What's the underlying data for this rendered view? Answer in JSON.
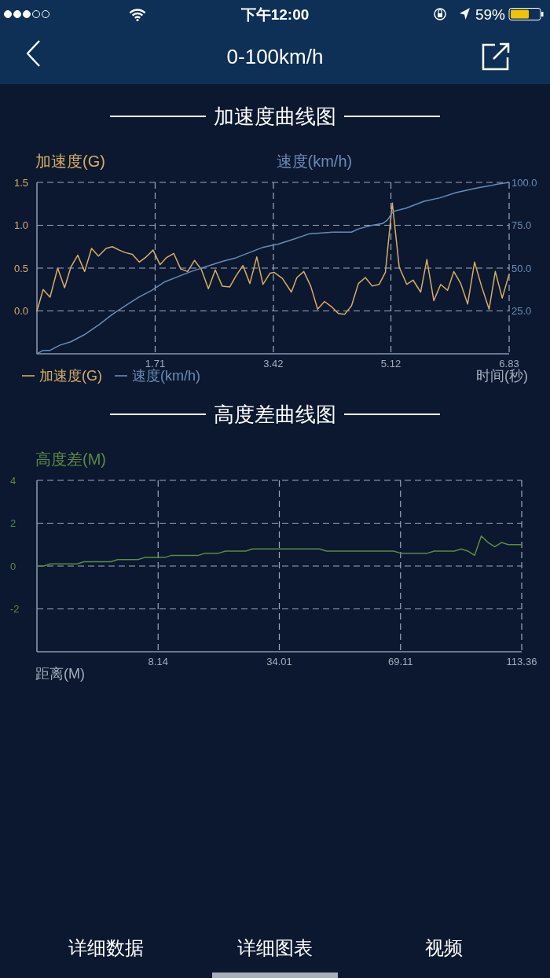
{
  "chart_data": [
    {
      "type": "other",
      "title": "0-100km/h",
      "annotations": [
        "下午12:00",
        "59%"
      ]
    },
    {
      "type": "line",
      "title": "加速度曲线图",
      "ylabel": "加速度(G)",
      "y2label": "速度(km/h)",
      "xlabel": "时间(秒)",
      "xlim": [
        0,
        6.83
      ],
      "xticks": [
        1.71,
        3.42,
        5.12,
        6.83
      ],
      "ylim": [
        -0.5,
        1.5
      ],
      "yticks": [
        {
          "value": 0,
          "label": "0.0"
        },
        0.5,
        {
          "value": 1,
          "label": "1.0"
        },
        1.5
      ],
      "y2lim": [
        0,
        100
      ],
      "y2ticks": [
        {
          "value": 25,
          "label": "25.0"
        },
        {
          "value": 50,
          "label": "50.0"
        },
        {
          "value": 75,
          "label": "75.0"
        },
        {
          "value": 100,
          "label": "100.0"
        }
      ],
      "grid": true,
      "legend": "bottom left",
      "series": [
        {
          "name": "加速度(G)",
          "color": "#d9ad62",
          "x": [
            0,
            0.09,
            0.19,
            0.3,
            0.4,
            0.49,
            0.59,
            0.69,
            0.79,
            0.89,
            1.0,
            1.09,
            1.19,
            1.28,
            1.38,
            1.48,
            1.58,
            1.68,
            1.78,
            1.87,
            1.98,
            2.08,
            2.18,
            2.28,
            2.38,
            2.48,
            2.58,
            2.68,
            2.79,
            2.88,
            2.98,
            3.08,
            3.18,
            3.27,
            3.37,
            3.43,
            3.55,
            3.68,
            3.76,
            3.86,
            3.96,
            4.06,
            4.16,
            4.26,
            4.36,
            4.45,
            4.55,
            4.65,
            4.75,
            4.85,
            4.95,
            5.04,
            5.14,
            5.24,
            5.35,
            5.44,
            5.55,
            5.64,
            5.74,
            5.84,
            5.94,
            6.03,
            6.13,
            6.23,
            6.33,
            6.43,
            6.54,
            6.63,
            6.73,
            6.83
          ],
          "values": [
            0,
            0.25,
            0.16,
            0.5,
            0.27,
            0.51,
            0.65,
            0.46,
            0.73,
            0.64,
            0.73,
            0.75,
            0.71,
            0.68,
            0.66,
            0.57,
            0.63,
            0.71,
            0.54,
            0.62,
            0.67,
            0.49,
            0.46,
            0.59,
            0.48,
            0.26,
            0.48,
            0.29,
            0.28,
            0.41,
            0.53,
            0.32,
            0.63,
            0.31,
            0.44,
            0.45,
            0.38,
            0.22,
            0.39,
            0.46,
            0.29,
            0.02,
            0.11,
            0.05,
            -0.03,
            -0.04,
            0.06,
            0.32,
            0.39,
            0.29,
            0.31,
            0.45,
            1.26,
            0.51,
            0.31,
            0.36,
            0.22,
            0.6,
            0.12,
            0.31,
            0.24,
            0.46,
            0.32,
            0.08,
            0.57,
            0.29,
            0.02,
            0.46,
            0.15,
            0.43
          ]
        },
        {
          "name": "速度(km/h)",
          "color": "#6a8cb6",
          "axis": "y2",
          "x": [
            0,
            0.09,
            0.19,
            0.33,
            0.49,
            0.68,
            0.9,
            1.09,
            1.28,
            1.47,
            1.66,
            1.85,
            2.04,
            2.23,
            2.46,
            2.69,
            2.88,
            3.07,
            3.26,
            3.49,
            3.72,
            3.94,
            4.28,
            4.55,
            4.66,
            4.85,
            5.0,
            5.07,
            5.15,
            5.34,
            5.6,
            5.83,
            6.06,
            6.28,
            6.4,
            6.55,
            6.66,
            6.83
          ],
          "values": [
            0,
            2,
            2,
            5,
            7,
            11,
            17,
            23,
            28,
            33,
            37,
            42,
            45,
            48,
            51,
            54,
            56,
            59,
            62,
            64,
            67,
            70,
            71,
            71,
            73,
            75,
            76,
            78,
            83,
            85,
            89,
            91,
            94,
            96,
            97,
            98,
            99,
            100
          ]
        }
      ]
    },
    {
      "type": "line",
      "title": "高度差曲线图",
      "ylabel": "高度差(M)",
      "xlabel": "距离(M)",
      "categories": [
        null,
        null,
        null,
        null,
        null,
        null,
        null,
        null,
        null,
        null,
        null,
        null,
        null,
        null,
        null,
        null,
        null,
        null,
        "8.14",
        null,
        null,
        null,
        null,
        null,
        null,
        null,
        null,
        null,
        null,
        null,
        null,
        null,
        null,
        null,
        null,
        null,
        "34.01",
        null,
        null,
        null,
        null,
        null,
        null,
        null,
        null,
        null,
        null,
        null,
        null,
        null,
        null,
        null,
        null,
        null,
        "69.11",
        null,
        null,
        null,
        null,
        null,
        null,
        null,
        null,
        null,
        null,
        null,
        null,
        null,
        null,
        null,
        null,
        null,
        "113.36"
      ],
      "ylim": [
        -4,
        4
      ],
      "yticks": [
        -2,
        0,
        2,
        4
      ],
      "grid": true,
      "series": [
        {
          "color": "#5e8a42",
          "values": [
            0,
            0,
            0.1,
            0.1,
            0.1,
            0.1,
            0.1,
            0.2,
            0.2,
            0.2,
            0.2,
            0.2,
            0.3,
            0.3,
            0.3,
            0.3,
            0.4,
            0.4,
            0.4,
            0.4,
            0.5,
            0.5,
            0.5,
            0.5,
            0.5,
            0.6,
            0.6,
            0.6,
            0.7,
            0.7,
            0.7,
            0.7,
            0.8,
            0.8,
            0.8,
            0.8,
            0.8,
            0.8,
            0.8,
            0.8,
            0.8,
            0.8,
            0.8,
            0.7,
            0.7,
            0.7,
            0.7,
            0.7,
            0.7,
            0.7,
            0.7,
            0.7,
            0.7,
            0.7,
            0.6,
            0.6,
            0.6,
            0.6,
            0.6,
            0.7,
            0.7,
            0.7,
            0.7,
            0.8,
            0.7,
            0.5,
            1.4,
            1.1,
            0.9,
            1.1,
            1,
            1,
            1
          ]
        }
      ]
    },
    {
      "type": "other",
      "annotations": [
        "详细数据",
        "详细图表",
        "视频"
      ]
    }
  ]
}
